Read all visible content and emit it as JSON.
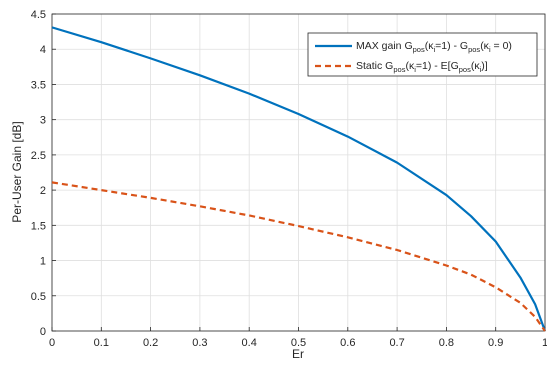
{
  "chart_data": {
    "type": "line",
    "xlabel": "Er",
    "ylabel": "Per-User Gain [dB]",
    "xlim": [
      0,
      1
    ],
    "ylim": [
      0,
      4.5
    ],
    "grid": true,
    "legend_position": "top-right",
    "x_ticks": [
      "0",
      "0.1",
      "0.2",
      "0.3",
      "0.4",
      "0.5",
      "0.6",
      "0.7",
      "0.8",
      "0.9",
      "1"
    ],
    "y_ticks": [
      "0",
      "0.5",
      "1",
      "1.5",
      "2",
      "2.5",
      "3",
      "3.5",
      "4",
      "4.5"
    ],
    "series": [
      {
        "name": "MAX gain G_pos(κ_i=1) - G_pos(κ_i = 0)",
        "legend": {
          "prefix": "MAX gain G",
          "sub1": "pos",
          "mid": "(κ",
          "sub2": "i",
          "tail": "=1) - G",
          "sub3": "pos",
          "mid2": "(κ",
          "sub4": "i",
          "end": " = 0)"
        },
        "color": "#0072BD",
        "style": "solid",
        "x": [
          0,
          0.1,
          0.2,
          0.3,
          0.4,
          0.5,
          0.6,
          0.7,
          0.8,
          0.85,
          0.9,
          0.95,
          0.98,
          1.0
        ],
        "y": [
          4.31,
          4.1,
          3.87,
          3.63,
          3.37,
          3.08,
          2.76,
          2.39,
          1.93,
          1.63,
          1.27,
          0.76,
          0.38,
          0.0
        ]
      },
      {
        "name": "Static G_pos(κ_i=1) - E[G_pos(κ_i)]",
        "legend": {
          "prefix": "Static G",
          "sub1": "pos",
          "mid": "(κ",
          "sub2": "i",
          "tail": "=1) - E[G",
          "sub3": "pos",
          "mid2": "(κ",
          "sub4": "i",
          "end": ")]"
        },
        "color": "#D95319",
        "style": "dashed",
        "x": [
          0,
          0.1,
          0.2,
          0.3,
          0.4,
          0.5,
          0.6,
          0.7,
          0.8,
          0.85,
          0.9,
          0.95,
          0.98,
          1.0
        ],
        "y": [
          2.11,
          2.0,
          1.89,
          1.77,
          1.64,
          1.49,
          1.33,
          1.15,
          0.93,
          0.8,
          0.62,
          0.4,
          0.2,
          0.0
        ]
      }
    ]
  }
}
